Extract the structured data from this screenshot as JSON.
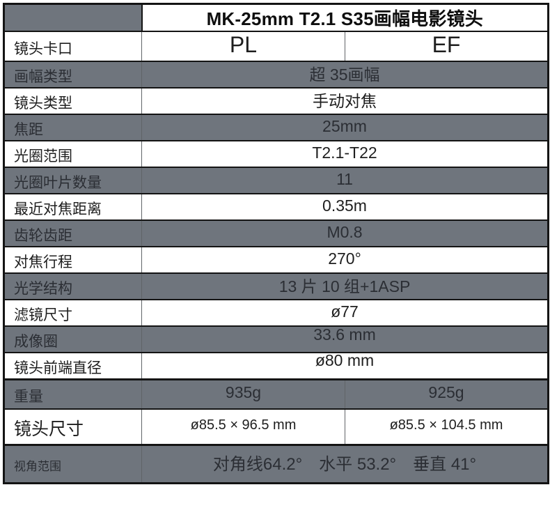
{
  "header": {
    "title": "MK-25mm T2.1 S35画幅电影镜头"
  },
  "table": {
    "rows": [
      {
        "label": "镜头卡口",
        "values": [
          "PL",
          "EF"
        ]
      },
      {
        "label": "画幅类型",
        "values": [
          "超 35画幅"
        ]
      },
      {
        "label": "镜头类型",
        "values": [
          "手动对焦"
        ]
      },
      {
        "label": "焦距",
        "values": [
          "25mm"
        ]
      },
      {
        "label": "光圈范围",
        "values": [
          "T2.1-T22"
        ]
      },
      {
        "label": "光圈叶片数量",
        "values": [
          "11"
        ]
      },
      {
        "label": "最近对焦距离",
        "values": [
          "0.35m"
        ]
      },
      {
        "label": "齿轮齿距",
        "values": [
          "M0.8"
        ]
      },
      {
        "label": "对焦行程",
        "values": [
          "270°"
        ]
      },
      {
        "label": "光学结构",
        "values": [
          "13 片 10 组+1ASP"
        ]
      },
      {
        "label": "滤镜尺寸",
        "values": [
          "ø77"
        ]
      },
      {
        "label": "成像圈",
        "values": [
          "33.6 mm"
        ]
      },
      {
        "label": "镜头前端直径",
        "values": [
          "ø80 mm"
        ]
      },
      {
        "label": "重量",
        "values": [
          "935g",
          "925g"
        ]
      },
      {
        "label": "镜头尺寸",
        "values": [
          "ø85.5 × 96.5 mm",
          "ø85.5 × 104.5 mm"
        ]
      },
      {
        "label": "视角范围",
        "values": [
          "对角线64.2° 水平 53.2° 垂直 41°"
        ]
      }
    ]
  },
  "colors": {
    "row_gray": "#6f757d",
    "row_white": "#ffffff",
    "border_dark": "#141414",
    "divider_gray": "#606468",
    "text_on_gray": "#2b2e34",
    "text_on_white": "#1e1e1e",
    "title_text": "#0e0e0e"
  }
}
